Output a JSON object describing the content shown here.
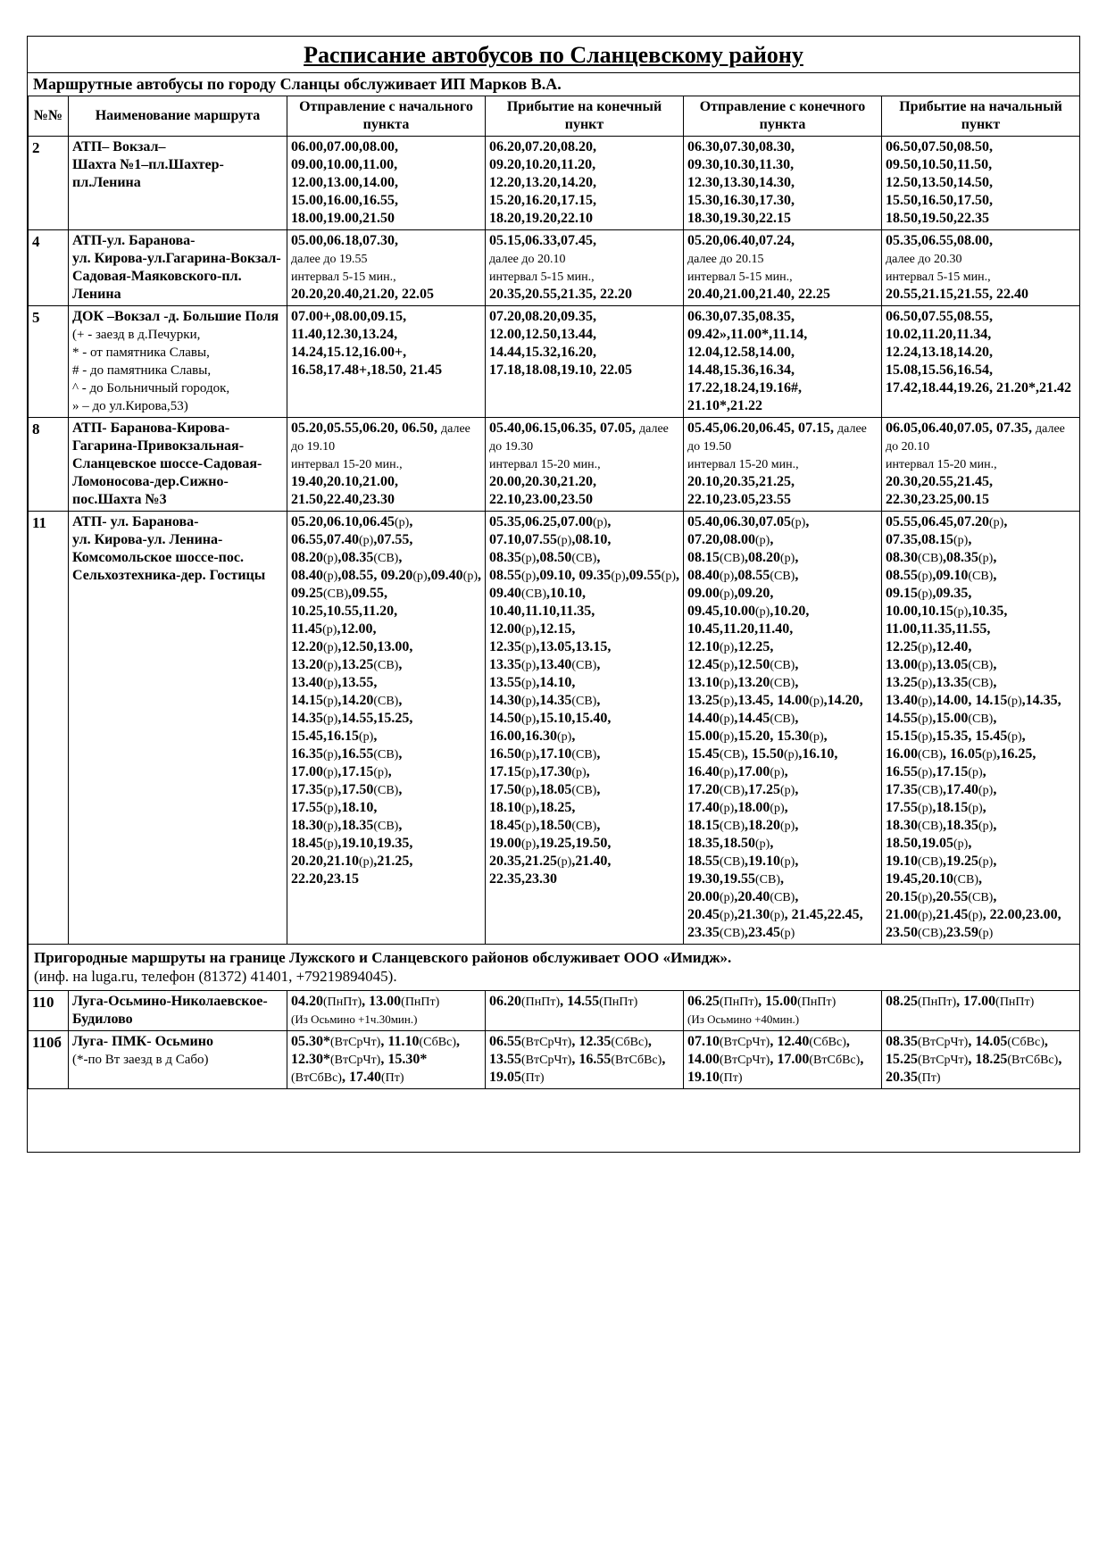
{
  "title": "Расписание автобусов по Сланцевскому району",
  "subtitle": "Маршрутные автобусы по городу Сланцы обслуживает ИП Марков В.А.",
  "headers": {
    "num": "№№",
    "name": "Наименование маршрута",
    "dep_start": "Отправление с начального пункта",
    "arr_end": "Прибытие на конечный пункт",
    "dep_end": "Отправление с конечного пункта",
    "arr_start": "Прибытие на начальный пункт"
  },
  "intertitle": "<b>Пригородные маршруты на границе Лужского и Сланцевского районов обслуживает ООО «Имидж».</b><br><span>(инф. на luga.ru, телефон (81372) 41401, +79219894045).</span>",
  "routes": [
    {
      "num": "2",
      "name": "<b>АТП– Вокзал–<br>Шахта №1–пл.Шахтер-пл.Ленина</b>",
      "dep_start": "06.00,07.00,08.00, 09.00,10.00,11.00, 12.00,13.00,14.00, 15.00,16.00,16.55, 18.00,19.00,21.50",
      "arr_end": "06.20,07.20,08.20, 09.20,10.20,11.20, 12.20,13.20,14.20, 15.20,16.20,17.15, 18.20,19.20,22.10",
      "dep_end": "06.30,07.30,08.30, 09.30,10.30,11.30, 12.30,13.30,14.30, 15.30,16.30,17.30, 18.30,19.30,22.15",
      "arr_start": "06.50,07.50,08.50, 09.50,10.50,11.50, 12.50,13.50,14.50, 15.50,16.50,17.50, 18.50,19.50,22.35"
    },
    {
      "num": "4",
      "name": "<b>АТП-ул. Баранова-<br>ул. Кирова-ул.Гагарина-Вокзал-Садовая-Маяковского-пл. Ленина</b>",
      "dep_start": "05.00,06.18,07.30,<br><span class='note'>далее до 19.55<br>интервал 5-15 мин.,</span><br>20.20,20.40,21.20, 22.05",
      "arr_end": "05.15,06.33,07.45,<br><span class='note'>далее до 20.10<br>интервал 5-15 мин.,</span><br>20.35,20.55,21.35, 22.20",
      "dep_end": "05.20,06.40,07.24,<br><span class='note'>далее до 20.15<br>интервал 5-15 мин.,</span><br>20.40,21.00,21.40, 22.25",
      "arr_start": "05.35,06.55,08.00,<br><span class='note'>далее до 20.30<br>интервал 5-15 мин.,</span><br>20.55,21.15,21.55, 22.40"
    },
    {
      "num": "5",
      "name": "<b>ДОК –Вокзал -д. Большие Поля</b> <span class='name-note'>(+ - заезд в д.Печурки,<br>* - от памятника Славы,<br># - до памятника Славы,<br>^ - до Больничный городок,<br>» – до ул.Кирова,53)</span>",
      "dep_start": "07.00+,08.00,09.15, 11.40,12.30,13.24, 14.24,15.12,16.00+, 16.58,17.48+,18.50, 21.45",
      "arr_end": "07.20,08.20,09.35, 12.00,12.50,13.44, 14.44,15.32,16.20, 17.18,18.08,19.10, 22.05",
      "dep_end": "06.30,07.35,08.35, 09.42»,11.00*,11.14, 12.04,12.58,14.00, 14.48,15.36,16.34, 17.22,18.24,19.16#, 21.10*,21.22",
      "arr_start": "06.50,07.55,08.55, 10.02,11.20,11.34, 12.24,13.18,14.20, 15.08,15.56,16.54, 17.42,18.44,19.26, 21.20*,21.42"
    },
    {
      "num": "8",
      "name": "<b>АТП- Баранова-Кирова-Гагарина-Привокзальная-Сланцевское шоссе-Садовая-Ломоносова-дер.Сижно-пос.Шахта №3</b>",
      "dep_start": "05.20,05.55,06.20, 06.50, <span class='note'>далее до 19.10<br>интервал 15-20 мин.,</span><br>19.40,20.10,21.00, 21.50,22.40,23.30",
      "arr_end": "05.40,06.15,06.35, 07.05, <span class='note'>далее до 19.30<br>интервал 15-20 мин.,</span><br>20.00,20.30,21.20, 22.10,23.00,23.50",
      "dep_end": "05.45,06.20,06.45, 07.15, <span class='note'>далее до 19.50<br>интервал 15-20 мин.,</span><br>20.10,20.35,21.25, 22.10,23.05,23.55",
      "arr_start": "06.05,06.40,07.05, 07.35, <span class='note'>далее до 20.10<br>интервал 15-20 мин.,</span><br>20.30,20.55,21.45, 22.30,23.25,00.15"
    },
    {
      "num": "11",
      "name": "<b>АТП- ул. Баранова-<br>ул. Кирова-ул. Ленина-Комсомольское шоссе-пос. Сельхозтехника-дер. Гостицы</b>",
      "dep_start": "05.20,06.10,06.45<span class='note'>(р)</span>, 06.55,07.40<span class='note'>(р)</span>,07.55, 08.20<span class='note'>(р)</span>,08.35<span class='note'>(СВ)</span>, 08.40<span class='note'>(р)</span>,08.55, 09.20<span class='note'>(р)</span>,09.40<span class='note'>(р)</span>, 09.25<span class='note'>(СВ)</span>,09.55, 10.25,10.55,11.20, 11.45<span class='note'>(р)</span>,12.00, 12.20<span class='note'>(р)</span>,12.50,13.00, 13.20<span class='note'>(р)</span>,13.25<span class='note'>(СВ)</span>, 13.40<span class='note'>(р)</span>,13.55, 14.15<span class='note'>(р)</span>,14.20<span class='note'>(СВ)</span>, 14.35<span class='note'>(р)</span>,14.55,15.25, 15.45,16.15<span class='note'>(р)</span>, 16.35<span class='note'>(р)</span>,16.55<span class='note'>(СВ)</span>, 17.00<span class='note'>(р)</span>,17.15<span class='note'>(р)</span>, 17.35<span class='note'>(р)</span>,17.50<span class='note'>(СВ)</span>, 17.55<span class='note'>(р)</span>,18.10, 18.30<span class='note'>(р)</span>,18.35<span class='note'>(СВ)</span>, 18.45<span class='note'>(р)</span>,19.10,19.35, 20.20,21.10<span class='note'>(р)</span>,21.25, 22.20,23.15",
      "arr_end": "05.35,06.25,07.00<span class='note'>(р)</span>, 07.10,07.55<span class='note'>(р)</span>,08.10, 08.35<span class='note'>(р)</span>,08.50<span class='note'>(СВ)</span>, 08.55<span class='note'>(р)</span>,09.10, 09.35<span class='note'>(р)</span>,09.55<span class='note'>(р)</span>, 09.40<span class='note'>(СВ)</span>,10.10, 10.40,11.10,11.35, 12.00<span class='note'>(р)</span>,12.15, 12.35<span class='note'>(р)</span>,13.05,13.15, 13.35<span class='note'>(р)</span>,13.40<span class='note'>(СВ)</span>, 13.55<span class='note'>(р)</span>,14.10, 14.30<span class='note'>(р)</span>,14.35<span class='note'>(СВ)</span>, 14.50<span class='note'>(р)</span>,15.10,15.40, 16.00,16.30<span class='note'>(р)</span>, 16.50<span class='note'>(р)</span>,17.10<span class='note'>(СВ)</span>, 17.15<span class='note'>(р)</span>,17.30<span class='note'>(р)</span>, 17.50<span class='note'>(р)</span>,18.05<span class='note'>(СВ)</span>, 18.10<span class='note'>(р)</span>,18.25, 18.45<span class='note'>(р)</span>,18.50<span class='note'>(СВ)</span>, 19.00<span class='note'>(р)</span>,19.25,19.50, 20.35,21.25<span class='note'>(р)</span>,21.40, 22.35,23.30",
      "dep_end": "05.40,06.30,07.05<span class='note'>(р)</span>, 07.20,08.00<span class='note'>(р)</span>, 08.15<span class='note'>(СВ)</span>,08.20<span class='note'>(р)</span>, 08.40<span class='note'>(р)</span>,08.55<span class='note'>(СВ)</span>, 09.00<span class='note'>(р)</span>,09.20, 09.45,10.00<span class='note'>(р)</span>,10.20, 10.45,11.20,11.40, 12.10<span class='note'>(р)</span>,12.25, 12.45<span class='note'>(р)</span>,12.50<span class='note'>(СВ)</span>, 13.10<span class='note'>(р)</span>,13.20<span class='note'>(СВ)</span>, 13.25<span class='note'>(р)</span>,13.45, 14.00<span class='note'>(р)</span>,14.20, 14.40<span class='note'>(р)</span>,14.45<span class='note'>(СВ)</span>, 15.00<span class='note'>(р)</span>,15.20, 15.30<span class='note'>(р)</span>, 15.45<span class='note'>(СВ)</span>, 15.50<span class='note'>(р)</span>,16.10, 16.40<span class='note'>(р)</span>,17.00<span class='note'>(р)</span>, 17.20<span class='note'>(СВ)</span>,17.25<span class='note'>(р)</span>, 17.40<span class='note'>(р)</span>,18.00<span class='note'>(р)</span>, 18.15<span class='note'>(СВ)</span>,18.20<span class='note'>(р)</span>, 18.35,18.50<span class='note'>(р)</span>, 18.55<span class='note'>(СВ)</span>,19.10<span class='note'>(р)</span>, 19.30,19.55<span class='note'>(СВ)</span>, 20.00<span class='note'>(р)</span>,20.40<span class='note'>(СВ)</span>, 20.45<span class='note'>(р)</span>,21.30<span class='note'>(р)</span>, 21.45,22.45, 23.35<span class='note'>(СВ)</span>,23.45<span class='note'>(р)</span>",
      "arr_start": "05.55,06.45,07.20<span class='note'>(р)</span>, 07.35,08.15<span class='note'>(р)</span>, 08.30<span class='note'>(СВ)</span>,08.35<span class='note'>(р)</span>, 08.55<span class='note'>(р)</span>,09.10<span class='note'>(СВ)</span>, 09.15<span class='note'>(р)</span>,09.35, 10.00,10.15<span class='note'>(р)</span>,10.35, 11.00,11.35,11.55, 12.25<span class='note'>(р)</span>,12.40, 13.00<span class='note'>(р)</span>,13.05<span class='note'>(СВ)</span>, 13.25<span class='note'>(р)</span>,13.35<span class='note'>(СВ)</span>, 13.40<span class='note'>(р)</span>,14.00, 14.15<span class='note'>(р)</span>,14.35, 14.55<span class='note'>(р)</span>,15.00<span class='note'>(СВ)</span>, 15.15<span class='note'>(р)</span>,15.35, 15.45<span class='note'>(р)</span>, 16.00<span class='note'>(СВ)</span>, 16.05<span class='note'>(р)</span>,16.25, 16.55<span class='note'>(р)</span>,17.15<span class='note'>(р)</span>, 17.35<span class='note'>(СВ)</span>,17.40<span class='note'>(р)</span>, 17.55<span class='note'>(р)</span>,18.15<span class='note'>(р)</span>, 18.30<span class='note'>(СВ)</span>,18.35<span class='note'>(р)</span>, 18.50,19.05<span class='note'>(р)</span>, 19.10<span class='note'>(СВ)</span>,19.25<span class='note'>(р)</span>, 19.45,20.10<span class='note'>(СВ)</span>, 20.15<span class='note'>(р)</span>,20.55<span class='note'>(СВ)</span>, 21.00<span class='note'>(р)</span>,21.45<span class='note'>(р)</span>, 22.00,23.00, 23.50<span class='note'>(СВ)</span>,23.59<span class='note'>(р)</span>"
    }
  ],
  "routes2": [
    {
      "num": "110",
      "name": "<b>Луга-Осьмино-Николаевское-Будилово</b>",
      "dep_start": "04.20<span class='note'>(ПнПт)</span>, 13.00<span class='note'>(ПнПт)</span><br><span class='small'>(Из Осьмино +1ч.30мин.)</span>",
      "arr_end": "06.20<span class='note'>(ПнПт)</span>, 14.55<span class='note'>(ПнПт)</span>",
      "dep_end": "06.25<span class='note'>(ПнПт)</span>, 15.00<span class='note'>(ПнПт)</span><br><span class='small'>(Из Осьмино +40мин.)</span>",
      "arr_start": "08.25<span class='note'>(ПнПт)</span>, 17.00<span class='note'>(ПнПт)</span>"
    },
    {
      "num": "110б",
      "name": "<b>Луга- ПМК- Осьмино</b><br><span class='name-note'>(*-по Вт заезд в д Сабо)</span>",
      "dep_start": "05.30*<span class='note'>(ВтСрЧт)</span>, 11.10<span class='note'>(СбВс)</span>, 12.30*<span class='note'>(ВтСрЧт)</span>, 15.30*<span class='note'>(ВтСбВс)</span>, 17.40<span class='note'>(Пт)</span>",
      "arr_end": "06.55<span class='note'>(ВтСрЧт)</span>, 12.35<span class='note'>(СбВс)</span>, 13.55<span class='note'>(ВтСрЧт)</span>, 16.55<span class='note'>(ВтСбВс)</span>, 19.05<span class='note'>(Пт)</span>",
      "dep_end": "07.10<span class='note'>(ВтСрЧт)</span>, 12.40<span class='note'>(СбВс)</span>, 14.00<span class='note'>(ВтСрЧт)</span>, 17.00<span class='note'>(ВтСбВс)</span>, 19.10<span class='note'>(Пт)</span>",
      "arr_start": "08.35<span class='note'>(ВтСрЧт)</span>, 14.05<span class='note'>(СбВс)</span>, 15.25<span class='note'>(ВтСрЧт)</span>, 18.25<span class='note'>(ВтСбВс)</span>, 20.35<span class='note'>(Пт)</span>"
    }
  ]
}
